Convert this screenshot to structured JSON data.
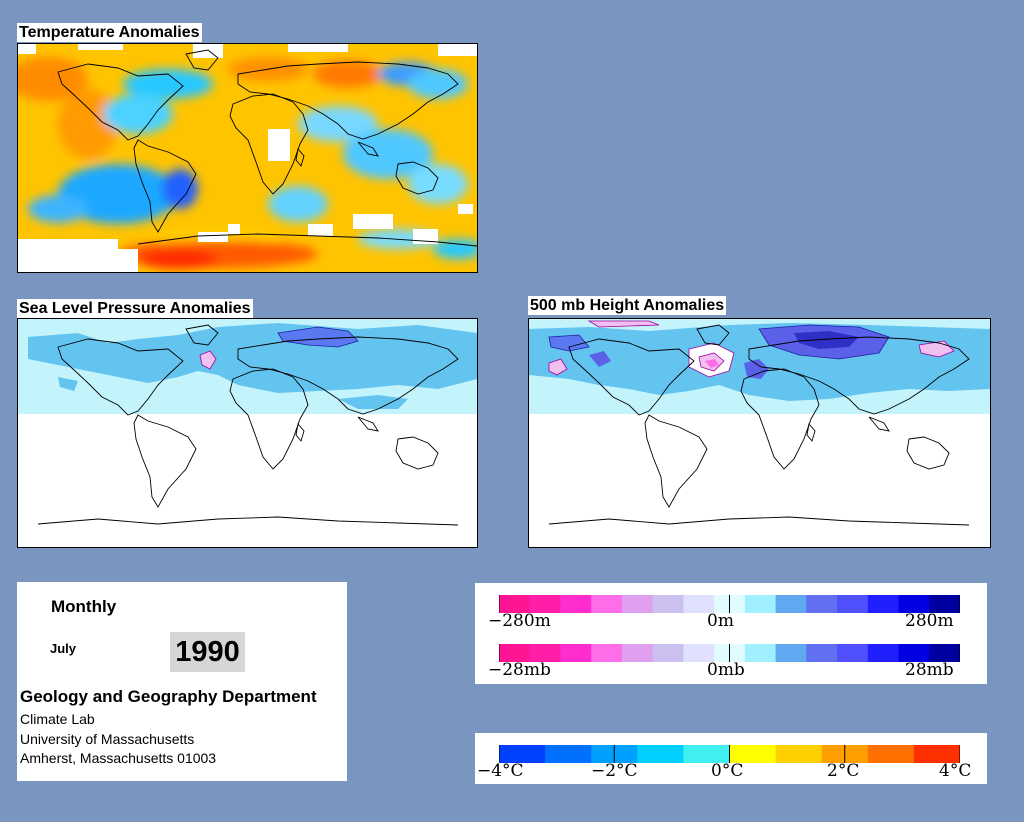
{
  "panels": {
    "temperature": {
      "title": "Temperature Anomalies"
    },
    "slp": {
      "title": "Sea Level Pressure Anomalies"
    },
    "height500": {
      "title": "500 mb Height Anomalies"
    }
  },
  "info": {
    "mode": "Monthly",
    "month": "July",
    "year": "1990",
    "department": "Geology and Geography Department",
    "lab": "Climate Lab",
    "university": "University of Massachusetts",
    "address": "Amherst, Massachusetts 01003"
  },
  "legends": {
    "height": {
      "min": "−280m",
      "mid": "0m",
      "max": "280m"
    },
    "pressure": {
      "min": "−28mb",
      "mid": "0mb",
      "max": "28mb"
    },
    "temperature": {
      "labels": [
        "−4°C",
        "−2°C",
        "0°C",
        "2°C",
        "4°C"
      ]
    }
  },
  "colors": {
    "background": "#7896bf",
    "anomaly_scale": [
      "#ff1493",
      "#ff1ea8",
      "#ff2cd0",
      "#ff6ee8",
      "#e0a0f0",
      "#ccc0f0",
      "#e0e0ff",
      "#e0fcff",
      "#a0f0ff",
      "#60a8f0",
      "#6070f0",
      "#5050ff",
      "#2020ff",
      "#0000e0",
      "#0000a0"
    ],
    "temperature_scale": [
      "#0040ff",
      "#0070ff",
      "#00a0ff",
      "#00d0ff",
      "#40f0f0",
      "#ffff00",
      "#ffd000",
      "#ffa000",
      "#ff7000",
      "#ff3000"
    ]
  }
}
